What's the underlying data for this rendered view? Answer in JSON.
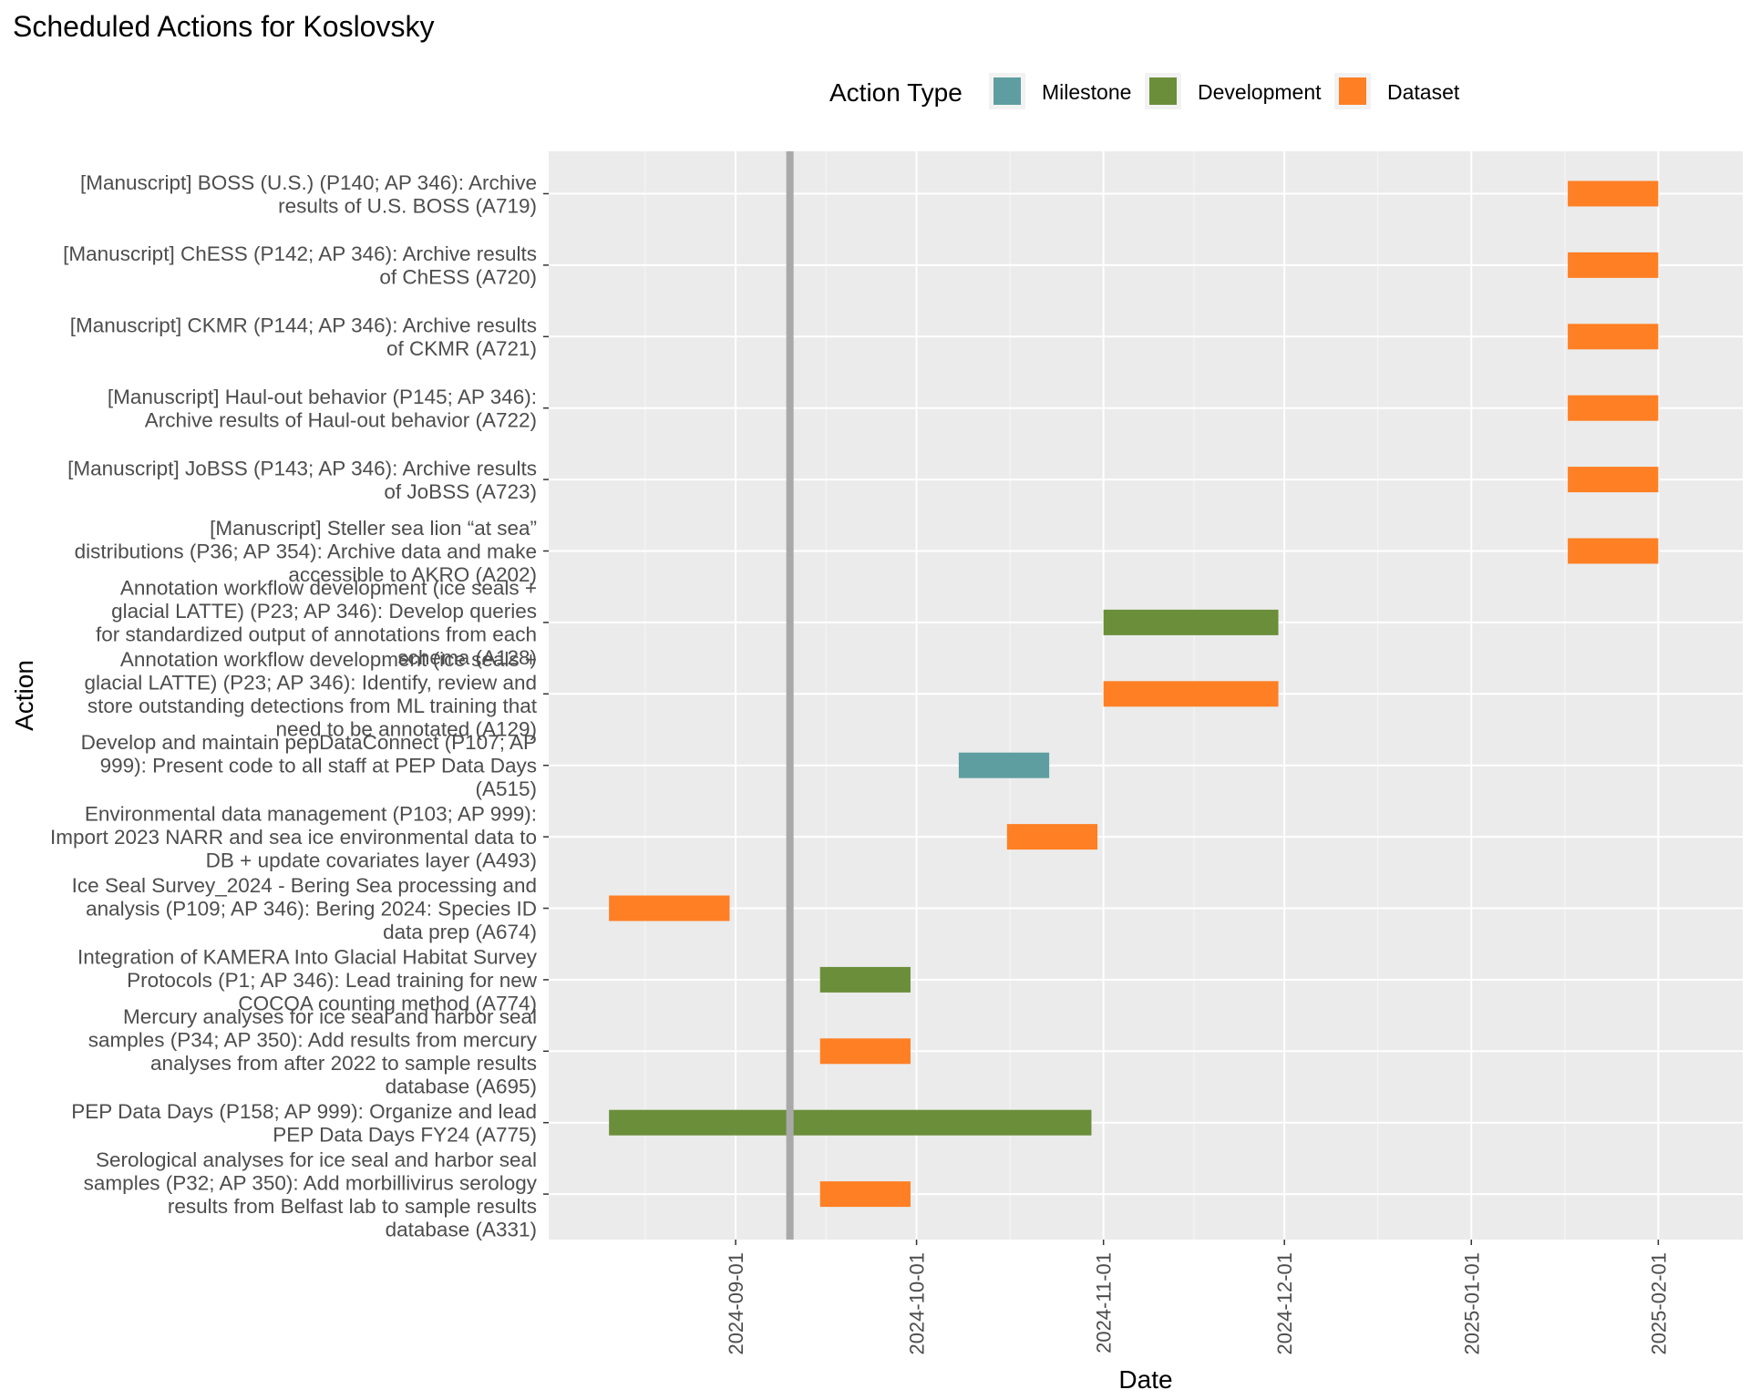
{
  "chart_data": {
    "type": "gantt",
    "title": "Scheduled Actions for Koslovsky",
    "xlabel": "Date",
    "ylabel": "Action",
    "legend": {
      "title": "Action Type",
      "position": "top",
      "items": [
        {
          "name": "Milestone",
          "color": "#5f9ea0"
        },
        {
          "name": "Development",
          "color": "#6b8e3a"
        },
        {
          "name": "Dataset",
          "color": "#ff7f24"
        }
      ]
    },
    "xlim": [
      "2024-08-01",
      "2025-02-15"
    ],
    "x_ticks": [
      "2024-09-01",
      "2024-10-01",
      "2024-11-01",
      "2024-12-01",
      "2025-01-01",
      "2025-02-01"
    ],
    "today_line": "2024-09-10",
    "grid": true,
    "series_colors": {
      "Milestone": "#5f9ea0",
      "Development": "#6b8e3a",
      "Dataset": "#ff7f24"
    },
    "tasks": [
      {
        "lines": [
          "[Manuscript] BOSS (U.S.) (P140; AP 346): Archive",
          "results of U.S. BOSS (A719)"
        ],
        "type": "Dataset",
        "start": "2025-01-17",
        "end": "2025-02-01"
      },
      {
        "lines": [
          "[Manuscript] ChESS (P142; AP 346): Archive results",
          "of ChESS (A720)"
        ],
        "type": "Dataset",
        "start": "2025-01-17",
        "end": "2025-02-01"
      },
      {
        "lines": [
          "[Manuscript] CKMR (P144; AP 346): Archive results",
          "of CKMR (A721)"
        ],
        "type": "Dataset",
        "start": "2025-01-17",
        "end": "2025-02-01"
      },
      {
        "lines": [
          "[Manuscript] Haul-out behavior (P145; AP 346):",
          "Archive results of Haul-out behavior (A722)"
        ],
        "type": "Dataset",
        "start": "2025-01-17",
        "end": "2025-02-01"
      },
      {
        "lines": [
          "[Manuscript] JoBSS (P143; AP 346): Archive results",
          "of JoBSS (A723)"
        ],
        "type": "Dataset",
        "start": "2025-01-17",
        "end": "2025-02-01"
      },
      {
        "lines": [
          "[Manuscript] Steller sea lion “at sea”",
          "distributions (P36; AP 354): Archive data and make",
          "accessible to AKRO (A202)"
        ],
        "type": "Dataset",
        "start": "2025-01-17",
        "end": "2025-02-01"
      },
      {
        "lines": [
          "Annotation workflow development (ice seals +",
          "glacial LATTE) (P23; AP 346): Develop queries",
          "for standardized output of annotations from each",
          "schema (A128)"
        ],
        "type": "Development",
        "start": "2024-11-01",
        "end": "2024-11-30"
      },
      {
        "lines": [
          "Annotation workflow development (ice seals +",
          "glacial LATTE) (P23; AP 346): Identify, review and",
          "store outstanding detections from ML training that",
          "need to be annotated (A129)"
        ],
        "type": "Dataset",
        "start": "2024-11-01",
        "end": "2024-11-30"
      },
      {
        "lines": [
          "Develop and maintain pepDataConnect (P107; AP",
          "999): Present code to all staff at PEP Data Days",
          "(A515)"
        ],
        "type": "Milestone",
        "start": "2024-10-08",
        "end": "2024-10-23"
      },
      {
        "lines": [
          "Environmental data management (P103; AP 999):",
          "Import 2023 NARR and sea ice environmental data to",
          "DB + update covariates layer (A493)"
        ],
        "type": "Dataset",
        "start": "2024-10-16",
        "end": "2024-10-31"
      },
      {
        "lines": [
          "Ice Seal Survey_2024 - Bering Sea processing and",
          "analysis (P109; AP 346): Bering 2024: Species ID",
          "data prep (A674)"
        ],
        "type": "Dataset",
        "start": "2024-08-11",
        "end": "2024-08-31"
      },
      {
        "lines": [
          "Integration of KAMERA Into Glacial Habitat Survey",
          "Protocols (P1; AP 346): Lead training for new",
          "COCOA counting method (A774)"
        ],
        "type": "Development",
        "start": "2024-09-15",
        "end": "2024-09-30"
      },
      {
        "lines": [
          "Mercury analyses for ice seal and harbor seal",
          "samples (P34; AP 350): Add results from mercury",
          "analyses from after 2022 to sample results",
          "database (A695)"
        ],
        "type": "Dataset",
        "start": "2024-09-15",
        "end": "2024-09-30"
      },
      {
        "lines": [
          "PEP Data Days (P158; AP 999): Organize and lead",
          "PEP Data Days FY24 (A775)"
        ],
        "type": "Development",
        "start": "2024-08-11",
        "end": "2024-10-30"
      },
      {
        "lines": [
          "Serological analyses for ice seal and harbor seal",
          "samples (P32; AP 350): Add morbillivirus serology",
          "results from Belfast lab to sample results",
          "database (A331)"
        ],
        "type": "Dataset",
        "start": "2024-09-15",
        "end": "2024-09-30"
      }
    ]
  }
}
